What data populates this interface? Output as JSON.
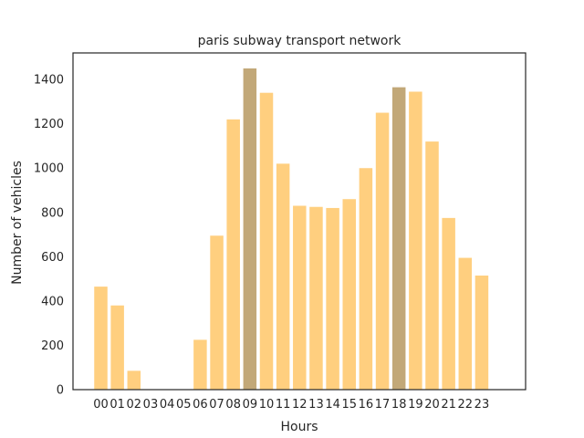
{
  "chart_data": {
    "type": "bar",
    "title": "paris subway transport network",
    "xlabel": "Hours",
    "ylabel": "Number of vehicles",
    "categories": [
      "00",
      "01",
      "02",
      "03",
      "04",
      "05",
      "06",
      "07",
      "08",
      "09",
      "10",
      "11",
      "12",
      "13",
      "14",
      "15",
      "16",
      "17",
      "18",
      "19",
      "20",
      "21",
      "22",
      "23"
    ],
    "values": [
      465,
      380,
      85,
      0,
      0,
      0,
      225,
      695,
      1220,
      1450,
      1340,
      1020,
      830,
      825,
      820,
      860,
      1000,
      1250,
      1365,
      1345,
      1120,
      775,
      595,
      515
    ],
    "highlighted_categories": [
      "09",
      "18"
    ],
    "ylim": [
      0,
      1520
    ],
    "yticks": [
      0,
      200,
      400,
      600,
      800,
      1000,
      1200,
      1400
    ],
    "grid": false,
    "colors": {
      "bar": "#ffcf7f",
      "bar_highlight": "#c2a878",
      "axis": "#262626",
      "background": "#ffffff"
    }
  }
}
